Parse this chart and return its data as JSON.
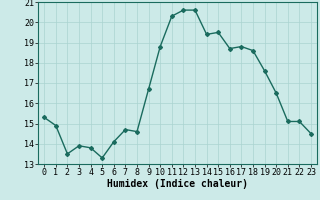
{
  "x": [
    0,
    1,
    2,
    3,
    4,
    5,
    6,
    7,
    8,
    9,
    10,
    11,
    12,
    13,
    14,
    15,
    16,
    17,
    18,
    19,
    20,
    21,
    22,
    23
  ],
  "y": [
    15.3,
    14.9,
    13.5,
    13.9,
    13.8,
    13.3,
    14.1,
    14.7,
    14.6,
    16.7,
    18.8,
    20.3,
    20.6,
    20.6,
    19.4,
    19.5,
    18.7,
    18.8,
    18.6,
    17.6,
    16.5,
    15.1,
    15.1,
    14.5
  ],
  "line_color": "#1a6b5e",
  "bg_color": "#cceae8",
  "grid_color": "#aad4d0",
  "xlabel": "Humidex (Indice chaleur)",
  "ylim": [
    13,
    21
  ],
  "xlim": [
    -0.5,
    23.5
  ],
  "yticks": [
    13,
    14,
    15,
    16,
    17,
    18,
    19,
    20,
    21
  ],
  "xticks": [
    0,
    1,
    2,
    3,
    4,
    5,
    6,
    7,
    8,
    9,
    10,
    11,
    12,
    13,
    14,
    15,
    16,
    17,
    18,
    19,
    20,
    21,
    22,
    23
  ],
  "marker": "D",
  "marker_size": 2.0,
  "line_width": 1.0,
  "xlabel_fontsize": 7,
  "tick_fontsize": 6
}
